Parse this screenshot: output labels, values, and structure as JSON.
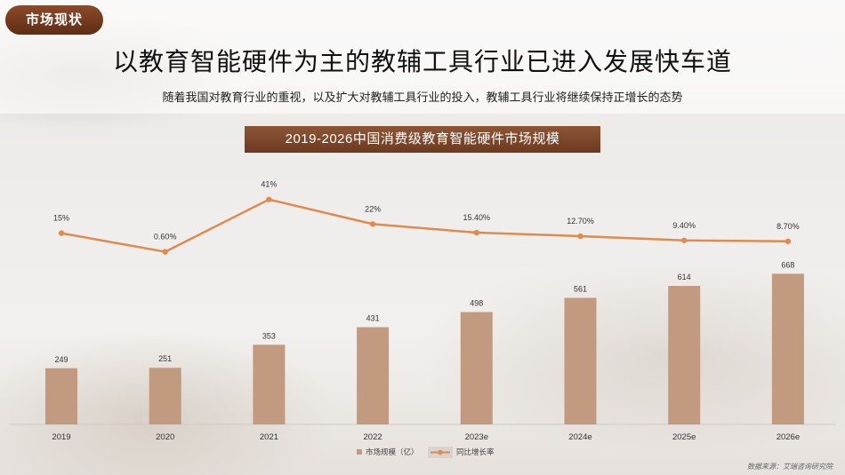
{
  "header": {
    "tag": "市场现状",
    "title": "以教育智能硬件为主的教辅工具行业已进入发展快车道",
    "subtitle": "随着我国对教育行业的重视，以及扩大对教辅工具行业的投入，教辅工具行业将继续保持正增长的态势"
  },
  "footer": {
    "source": "数据来源：艾瑞咨询研究院"
  },
  "chart_data": {
    "type": "bar",
    "title": "2019-2026中国消费级教育智能硬件市场规模",
    "categories": [
      "2019",
      "2020",
      "2021",
      "2022",
      "2023e",
      "2024e",
      "2025e",
      "2026e"
    ],
    "series": [
      {
        "name": "市场规模（亿）",
        "type": "bar",
        "values": [
          249,
          251,
          353,
          431,
          498,
          561,
          614,
          668
        ],
        "labels": [
          "249",
          "251",
          "353",
          "431",
          "498",
          "561",
          "614",
          "668"
        ]
      },
      {
        "name": "同比增长率",
        "type": "line",
        "values": [
          15,
          0.6,
          41,
          22,
          15.4,
          12.7,
          9.4,
          8.7
        ],
        "labels": [
          "15%",
          "0.60%",
          "41%",
          "22%",
          "15.40%",
          "12.70%",
          "9.40%",
          "8.70%"
        ]
      }
    ],
    "legend": "bottom",
    "colors": {
      "bar": "#c19a7f",
      "line": "#e08a4e"
    }
  }
}
